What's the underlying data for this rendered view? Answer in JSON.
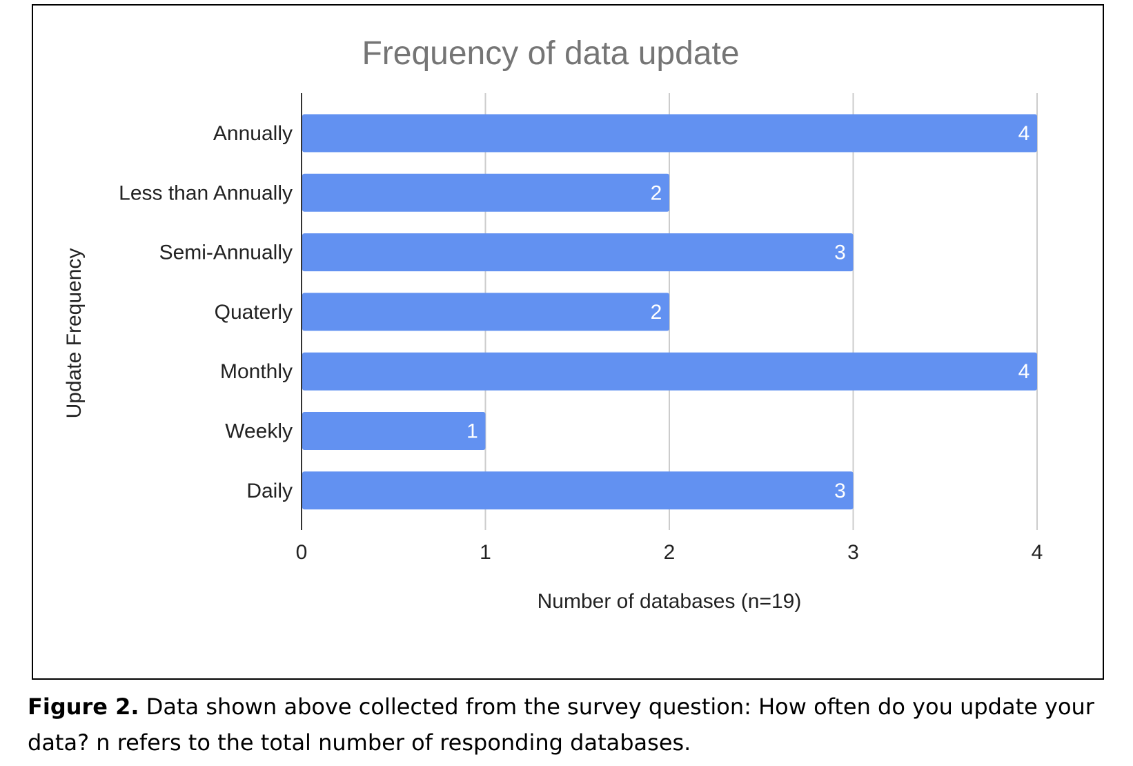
{
  "chart_data": {
    "type": "bar",
    "orientation": "horizontal",
    "title": "Frequency of data update",
    "xlabel": "Number of databases (n=19)",
    "ylabel": "Update Frequency",
    "categories": [
      "Annually",
      "Less than Annually",
      "Semi-Annually",
      "Quaterly",
      "Monthly",
      "Weekly",
      "Daily"
    ],
    "values": [
      4,
      2,
      3,
      2,
      4,
      1,
      3
    ],
    "xlim": [
      0,
      4
    ],
    "xticks": [
      "0",
      "1",
      "2",
      "3",
      "4"
    ],
    "grid": true,
    "bar_color": "#6291f1",
    "data_labels": true
  },
  "caption": {
    "label": "Figure 2.",
    "text": " Data shown above collected from the survey question: How often do you update your data? n refers to the total number of responding databases."
  }
}
